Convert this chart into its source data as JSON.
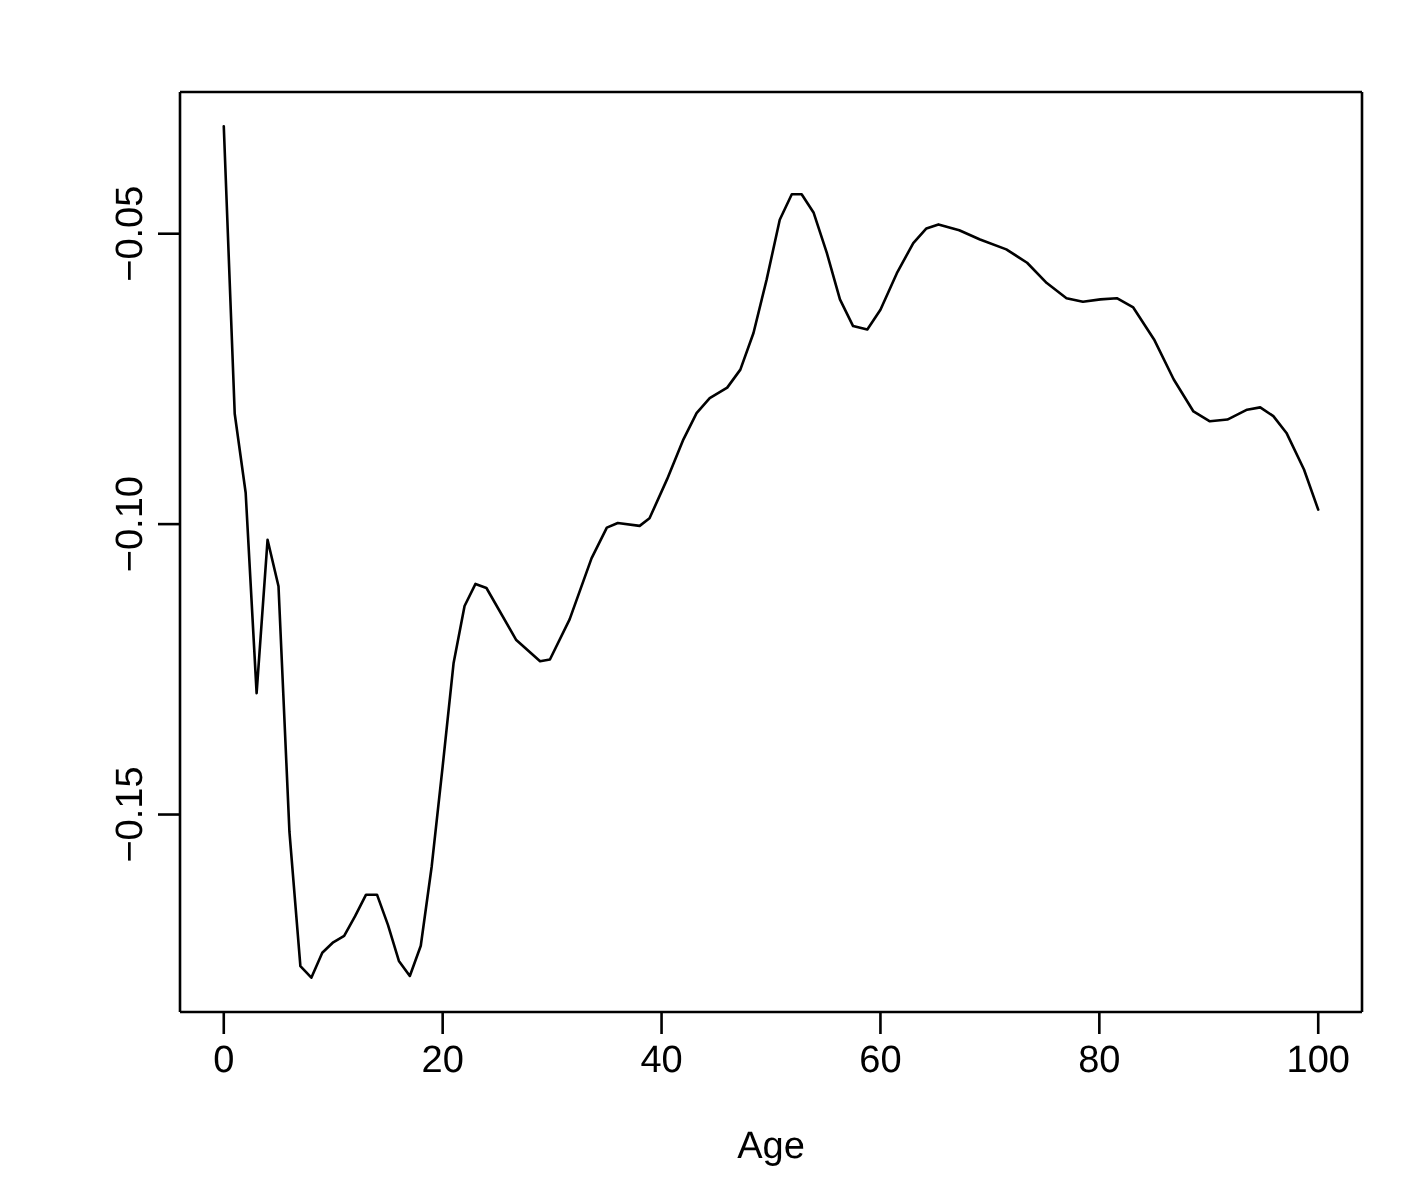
{
  "chart_data": {
    "type": "line",
    "xlabel": "Age",
    "color": "#000000",
    "x": [
      0,
      1,
      2,
      3,
      4,
      5,
      6,
      7,
      8,
      9,
      10,
      11,
      12,
      13,
      14,
      15,
      16,
      17,
      18,
      19,
      20,
      21,
      22,
      23,
      24,
      26.7,
      28.9,
      29.8,
      31.6,
      33.6,
      35,
      36,
      38,
      38.9,
      40.5,
      42,
      43.2,
      44.4,
      46,
      47.2,
      48.4,
      49.6,
      50.8,
      51.9,
      52.8,
      53.9,
      55.1,
      56.3,
      57.5,
      58.8,
      60,
      61.5,
      63,
      64.2,
      65.3,
      67.2,
      69.1,
      71.5,
      73.4,
      75.2,
      77,
      78.5,
      80.1,
      81.6,
      83.1,
      85,
      86.8,
      88.6,
      90.1,
      91.7,
      93.5,
      94.7,
      95.9,
      97.1,
      98.7,
      100
    ],
    "values": [
      -0.0315,
      -0.081,
      -0.0946,
      -0.1291,
      -0.1027,
      -0.1107,
      -0.153,
      -0.1761,
      -0.1781,
      -0.1738,
      -0.172,
      -0.1709,
      -0.1675,
      -0.1638,
      -0.1638,
      -0.169,
      -0.1752,
      -0.1778,
      -0.1726,
      -0.1589,
      -0.1417,
      -0.1239,
      -0.1141,
      -0.1103,
      -0.111,
      -0.1199,
      -0.1236,
      -0.1233,
      -0.1164,
      -0.1059,
      -0.1006,
      -0.0998,
      -0.1003,
      -0.099,
      -0.0923,
      -0.0854,
      -0.0809,
      -0.0783,
      -0.0765,
      -0.0734,
      -0.0671,
      -0.0579,
      -0.0476,
      -0.0432,
      -0.0432,
      -0.0464,
      -0.0533,
      -0.0613,
      -0.0659,
      -0.0665,
      -0.0631,
      -0.0568,
      -0.0516,
      -0.0491,
      -0.0484,
      -0.0494,
      -0.051,
      -0.0527,
      -0.055,
      -0.0585,
      -0.0611,
      -0.0617,
      -0.0613,
      -0.0611,
      -0.0627,
      -0.0682,
      -0.0751,
      -0.0806,
      -0.0823,
      -0.082,
      -0.0803,
      -0.0799,
      -0.0814,
      -0.0843,
      -0.0906,
      -0.0975
    ],
    "xlim": [
      -4,
      104
    ],
    "ylim": [
      -0.184,
      -0.0256
    ],
    "xticks": [
      0,
      20,
      40,
      60,
      80,
      100
    ],
    "yticks": [
      {
        "value": -0.15,
        "label": "−0.15"
      },
      {
        "value": -0.1,
        "label": "−0.10"
      },
      {
        "value": -0.05,
        "label": "−0.05"
      }
    ]
  }
}
